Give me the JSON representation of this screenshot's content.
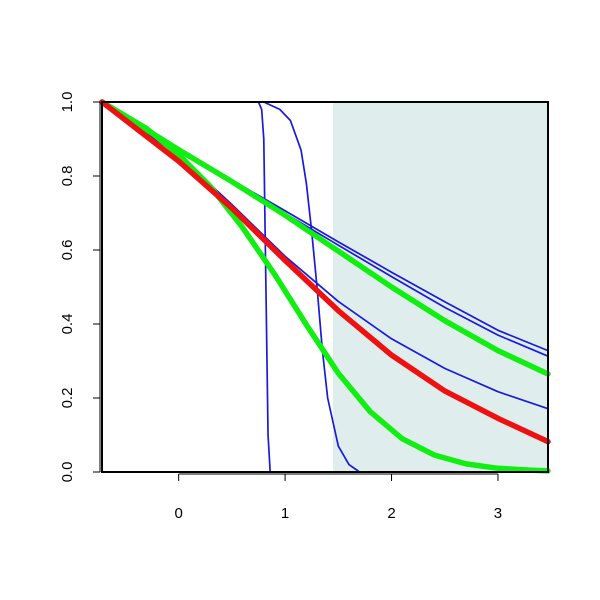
{
  "chart_data": {
    "type": "line",
    "title": "",
    "xlabel": "",
    "ylabel": "",
    "xlim": [
      -0.72,
      3.47
    ],
    "ylim": [
      0,
      1
    ],
    "x_ticks": [
      "0",
      "1",
      "2",
      "3"
    ],
    "y_ticks": [
      "0.0",
      "0.2",
      "0.4",
      "0.6",
      "0.8",
      "1.0"
    ],
    "grid": false,
    "legend": "none",
    "shaded_region": {
      "x_start": 1.45,
      "x_end": 3.47,
      "color": "#e0eded"
    },
    "colors": {
      "blue": "#1a1adb",
      "green": "#11ee11",
      "red": "#ee1111",
      "axes": "#000000"
    },
    "series": [
      {
        "color": "#1a1adb",
        "width": "thin",
        "x": [
          -0.72,
          0.0,
          0.5,
          1.0,
          1.5,
          2.0,
          2.5,
          3.0,
          3.47
        ],
        "y": [
          1.0,
          0.871,
          0.789,
          0.706,
          0.622,
          0.54,
          0.46,
          0.383,
          0.328
        ]
      },
      {
        "color": "#1a1adb",
        "width": "thin",
        "x": [
          -0.72,
          0.0,
          0.5,
          1.0,
          1.5,
          2.0,
          2.5,
          3.0,
          3.47
        ],
        "y": [
          1.0,
          0.871,
          0.784,
          0.699,
          0.613,
          0.528,
          0.445,
          0.37,
          0.313
        ]
      },
      {
        "color": "#1a1adb",
        "width": "thin",
        "x": [
          -0.72,
          0.0,
          0.5,
          1.0,
          1.5,
          2.0,
          2.5,
          3.0,
          3.47
        ],
        "y": [
          1.0,
          0.856,
          0.723,
          0.583,
          0.461,
          0.36,
          0.28,
          0.217,
          0.171
        ]
      },
      {
        "color": "#1a1adb",
        "width": "thin",
        "x": [
          -0.72,
          0.75,
          0.78,
          0.8,
          0.82,
          0.84,
          0.86,
          3.47
        ],
        "y": [
          1.0,
          1.0,
          0.98,
          0.9,
          0.5,
          0.1,
          0.0,
          0.0
        ]
      },
      {
        "color": "#1a1adb",
        "width": "thin",
        "x": [
          -0.72,
          0.8,
          0.95,
          1.05,
          1.15,
          1.2,
          1.25,
          1.3,
          1.35,
          1.4,
          1.5,
          1.6,
          1.7,
          3.47
        ],
        "y": [
          1.0,
          1.0,
          0.98,
          0.95,
          0.87,
          0.78,
          0.65,
          0.5,
          0.33,
          0.2,
          0.07,
          0.02,
          0.0,
          0.0
        ]
      },
      {
        "color": "#11ee11",
        "width": "thick",
        "x": [
          -0.72,
          0.0,
          0.5,
          1.0,
          1.5,
          2.0,
          2.5,
          3.0,
          3.47
        ],
        "y": [
          1.0,
          0.871,
          0.785,
          0.694,
          0.597,
          0.5,
          0.409,
          0.328,
          0.265
        ]
      },
      {
        "color": "#11ee11",
        "width": "thick",
        "x": [
          -0.72,
          -0.3,
          0.0,
          0.3,
          0.6,
          0.9,
          1.2,
          1.5,
          1.8,
          2.1,
          2.4,
          2.7,
          3.0,
          3.3,
          3.47
        ],
        "y": [
          1.0,
          0.928,
          0.858,
          0.771,
          0.661,
          0.535,
          0.398,
          0.267,
          0.163,
          0.09,
          0.046,
          0.022,
          0.01,
          0.005,
          0.003
        ]
      },
      {
        "color": "#ee1111",
        "width": "thick",
        "x": [
          -0.72,
          0.0,
          0.5,
          1.0,
          1.5,
          2.0,
          2.5,
          3.0,
          3.47
        ],
        "y": [
          1.0,
          0.84,
          0.713,
          0.572,
          0.436,
          0.316,
          0.219,
          0.145,
          0.082
        ]
      }
    ]
  }
}
